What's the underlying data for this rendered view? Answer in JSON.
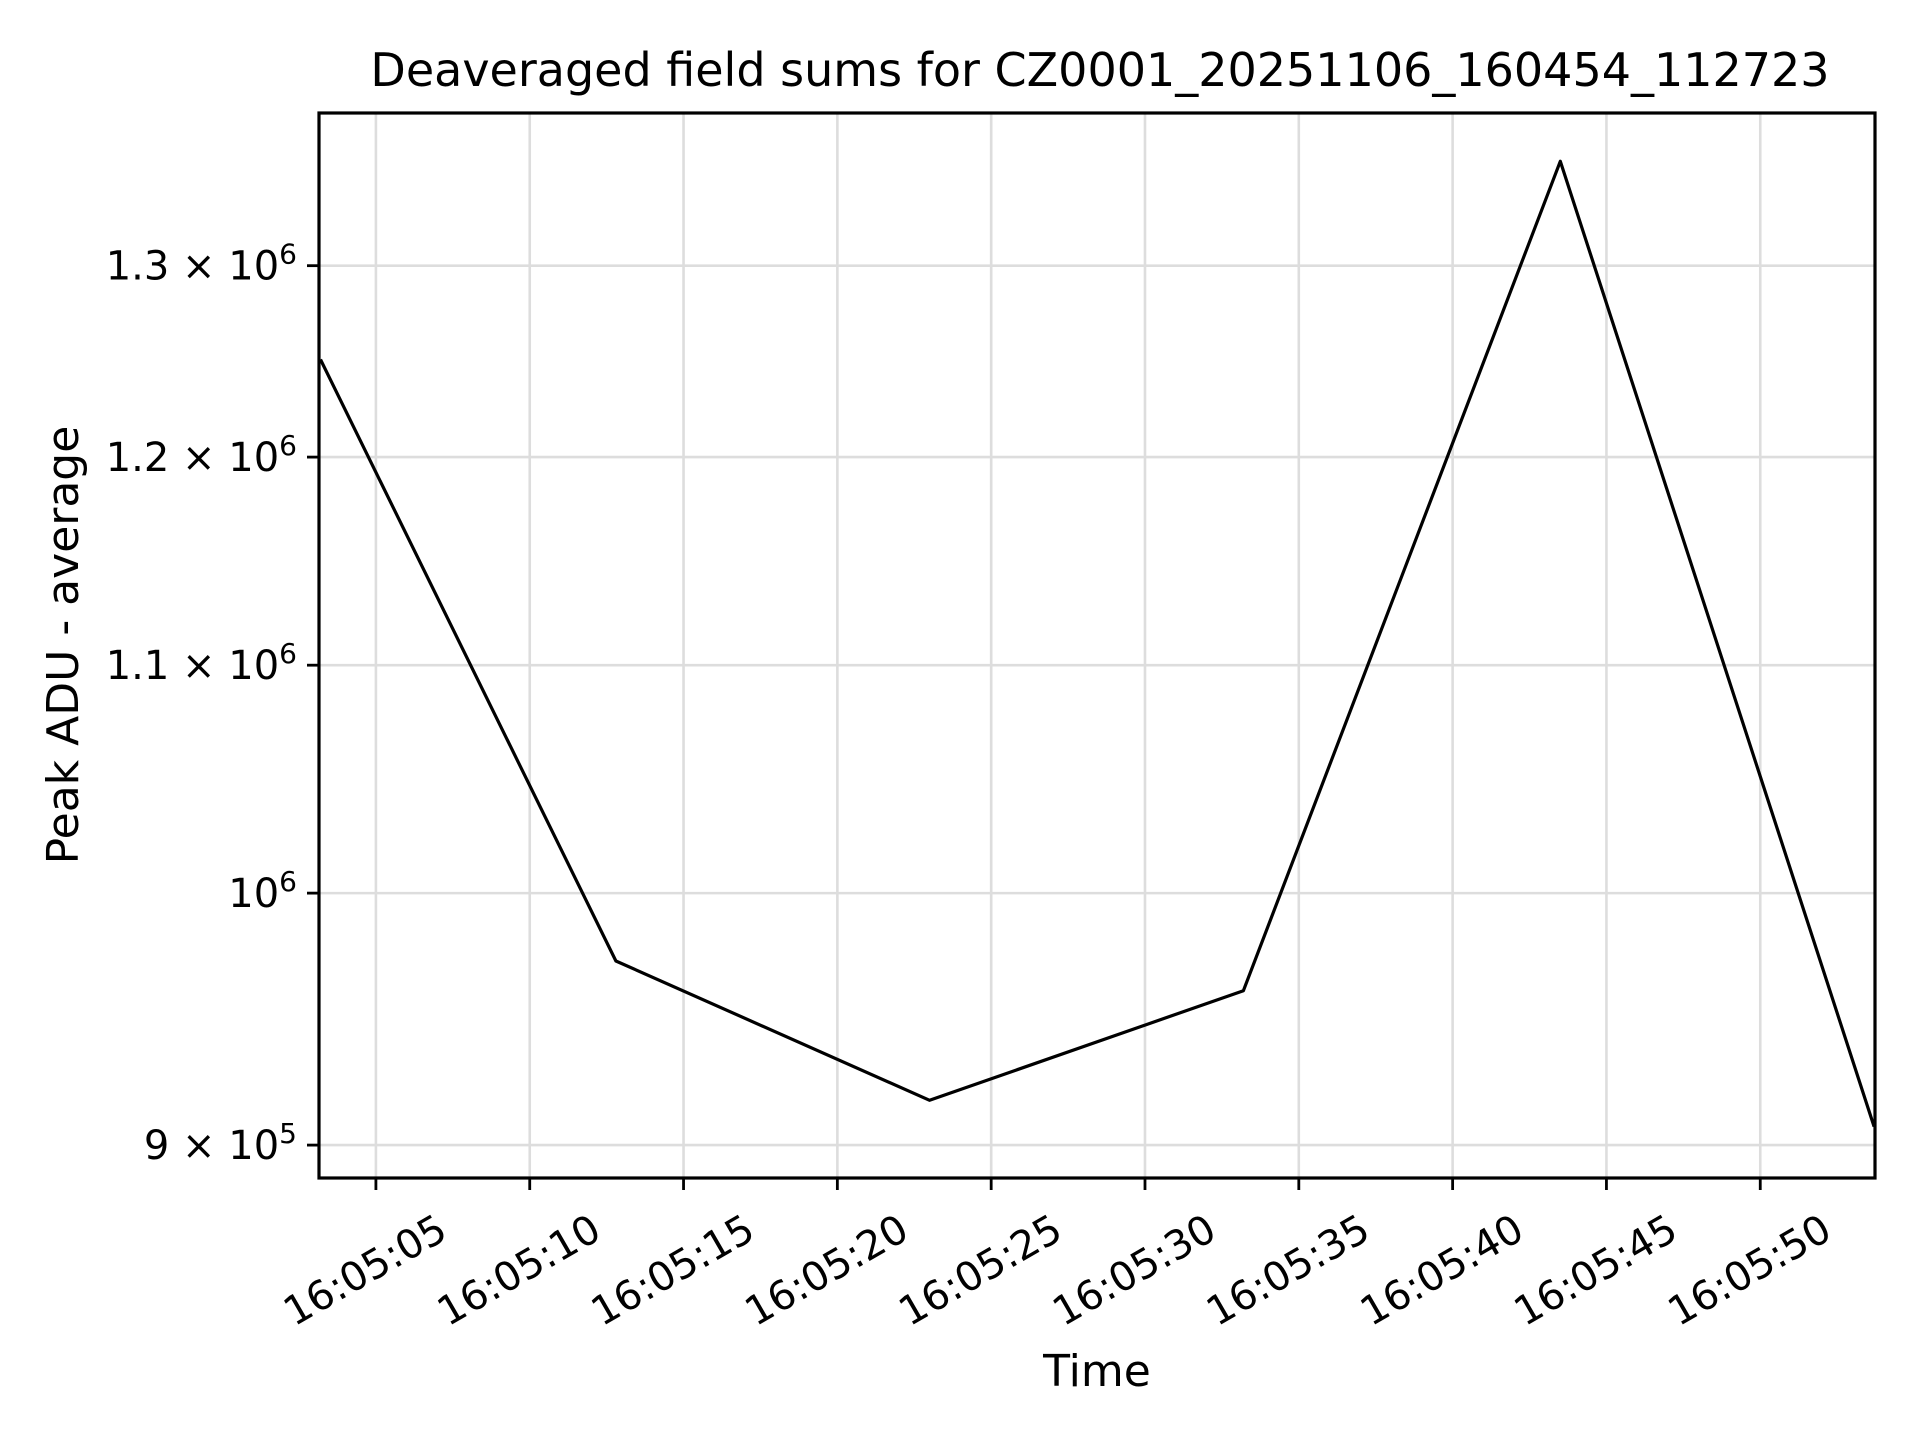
{
  "chart_data": {
    "type": "line",
    "title": "Deaveraged field sums for CZ0001_20251106_160454_112723",
    "xlabel": "Time",
    "ylabel": "Peak ADU - average",
    "x_scale": "time",
    "y_scale": "log",
    "grid": true,
    "grid_color": "#dddddd",
    "line_color": "#000000",
    "background_color": "#ffffff",
    "legend": "none",
    "points": [
      {
        "time": "16:05:03",
        "seconds": 3.2,
        "value": 1250000
      },
      {
        "time": "16:05:13",
        "seconds": 12.8,
        "value": 972000
      },
      {
        "time": "16:05:23",
        "seconds": 23.0,
        "value": 917000
      },
      {
        "time": "16:05:33",
        "seconds": 33.2,
        "value": 960000
      },
      {
        "time": "16:05:44",
        "seconds": 43.5,
        "value": 1358000
      },
      {
        "time": "16:05:54",
        "seconds": 53.7,
        "value": 907000
      }
    ],
    "xticks": [
      {
        "label": "16:05:05",
        "seconds": 5
      },
      {
        "label": "16:05:10",
        "seconds": 10
      },
      {
        "label": "16:05:15",
        "seconds": 15
      },
      {
        "label": "16:05:20",
        "seconds": 20
      },
      {
        "label": "16:05:25",
        "seconds": 25
      },
      {
        "label": "16:05:30",
        "seconds": 30
      },
      {
        "label": "16:05:35",
        "seconds": 35
      },
      {
        "label": "16:05:40",
        "seconds": 40
      },
      {
        "label": "16:05:45",
        "seconds": 45
      },
      {
        "label": "16:05:50",
        "seconds": 50
      }
    ],
    "yticks": [
      {
        "mantissa": "9 × 10",
        "exp": "5",
        "value": 900000
      },
      {
        "mantissa": "10",
        "exp": "6",
        "value": 1000000
      },
      {
        "mantissa": "1.1 × 10",
        "exp": "6",
        "value": 1100000
      },
      {
        "mantissa": "1.2 × 10",
        "exp": "6",
        "value": 1200000
      },
      {
        "mantissa": "1.3 × 10",
        "exp": "6",
        "value": 1300000
      }
    ],
    "xlim_seconds": [
      3.15,
      53.73
    ],
    "ylim": [
      887700,
      1385700
    ]
  }
}
